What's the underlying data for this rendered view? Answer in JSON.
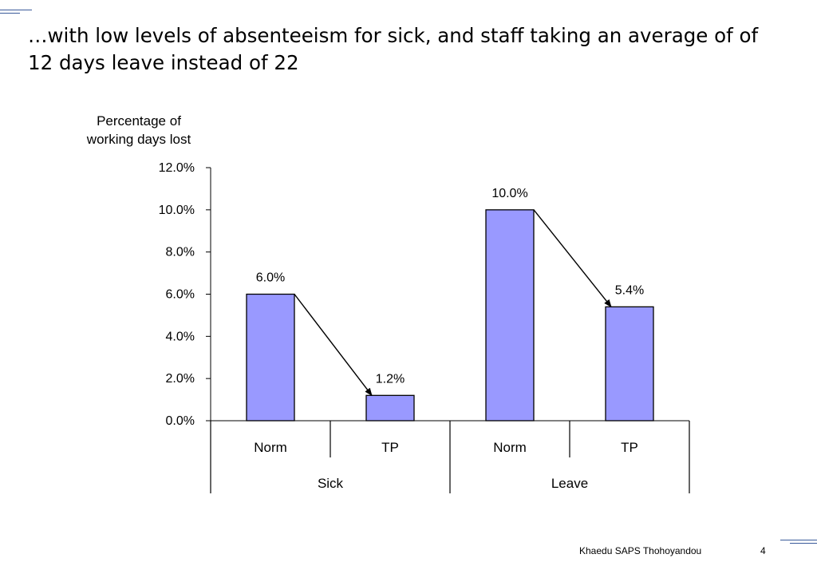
{
  "title": "…with low levels of absenteeism for sick, and staff taking an average of of 12 days leave instead of 22",
  "footer": {
    "source": "Khaedu SAPS Thohoyandou",
    "page_number": "4"
  },
  "colors": {
    "bar_fill": "#9999ff",
    "bar_stroke": "#000000",
    "decor_line": "#3a5a9a"
  },
  "chart_data": {
    "type": "bar",
    "ylabel": "Percentage of working days lost",
    "ylabel_lines": [
      "Percentage of",
      "working days lost"
    ],
    "ylim": [
      0,
      12
    ],
    "yticks": [
      0,
      2,
      4,
      6,
      8,
      10,
      12
    ],
    "ytick_labels": [
      "0.0%",
      "2.0%",
      "4.0%",
      "6.0%",
      "8.0%",
      "10.0%",
      "12.0%"
    ],
    "groups": [
      {
        "name": "Sick",
        "categories": [
          "Norm",
          "TP"
        ],
        "values": [
          6.0,
          1.2
        ],
        "labels": [
          "6.0%",
          "1.2%"
        ]
      },
      {
        "name": "Leave",
        "categories": [
          "Norm",
          "TP"
        ],
        "values": [
          10.0,
          5.4
        ],
        "labels": [
          "10.0%",
          "5.4%"
        ]
      }
    ],
    "annotations": [
      "arrow Sick Norm to Sick TP",
      "arrow Leave Norm to Leave TP"
    ],
    "grid": false,
    "legend": "none"
  }
}
